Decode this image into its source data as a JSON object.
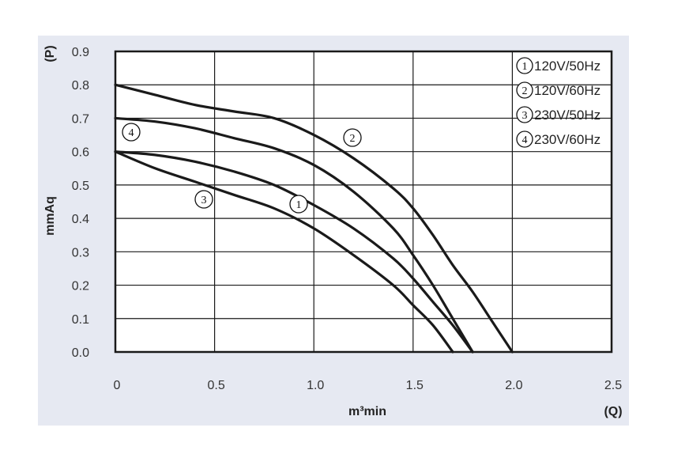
{
  "colors": {
    "panel_background": "#e6e9f2",
    "plot_background": "#ffffff",
    "curve": "#1a1a1a",
    "grid": "#1a1a1a"
  },
  "chart_data": {
    "type": "line",
    "xlabel": "m³min",
    "ylabel": "mmAq",
    "x_unit_symbol": "(Q)",
    "y_unit_symbol": "(P)",
    "xlim": [
      0,
      2.5
    ],
    "ylim": [
      0,
      0.9
    ],
    "x_ticks": [
      "0",
      "0.5",
      "1.0",
      "1.5",
      "2.0",
      "2.5"
    ],
    "y_ticks": [
      "0.0",
      "0.1",
      "0.2",
      "0.3",
      "0.4",
      "0.5",
      "0.6",
      "0.7",
      "0.8",
      "0.9"
    ],
    "grid": true,
    "legend_position": "top-right",
    "series": [
      {
        "name": "120V/50Hz",
        "marker": "1",
        "x": [
          0,
          0.2,
          0.4,
          0.6,
          0.8,
          1.0,
          1.2,
          1.4,
          1.5,
          1.6,
          1.7,
          1.8
        ],
        "y": [
          0.6,
          0.59,
          0.57,
          0.54,
          0.5,
          0.44,
          0.37,
          0.28,
          0.22,
          0.15,
          0.08,
          0.0
        ]
      },
      {
        "name": "120V/60Hz",
        "marker": "2",
        "x": [
          0,
          0.2,
          0.4,
          0.6,
          0.8,
          1.0,
          1.2,
          1.4,
          1.5,
          1.6,
          1.7,
          1.8,
          1.9,
          2.0
        ],
        "y": [
          0.8,
          0.77,
          0.74,
          0.72,
          0.7,
          0.65,
          0.58,
          0.49,
          0.43,
          0.35,
          0.26,
          0.18,
          0.09,
          0.0
        ]
      },
      {
        "name": "230V/50Hz",
        "marker": "3",
        "x": [
          0,
          0.2,
          0.4,
          0.6,
          0.8,
          1.0,
          1.2,
          1.4,
          1.5,
          1.6,
          1.7
        ],
        "y": [
          0.6,
          0.55,
          0.51,
          0.47,
          0.43,
          0.37,
          0.29,
          0.2,
          0.14,
          0.08,
          0.0
        ]
      },
      {
        "name": "230V/60Hz",
        "marker": "4",
        "x": [
          0,
          0.2,
          0.4,
          0.6,
          0.8,
          1.0,
          1.2,
          1.4,
          1.5,
          1.6,
          1.7,
          1.8
        ],
        "y": [
          0.7,
          0.69,
          0.67,
          0.64,
          0.61,
          0.56,
          0.48,
          0.37,
          0.29,
          0.2,
          0.1,
          0.0
        ]
      }
    ]
  }
}
